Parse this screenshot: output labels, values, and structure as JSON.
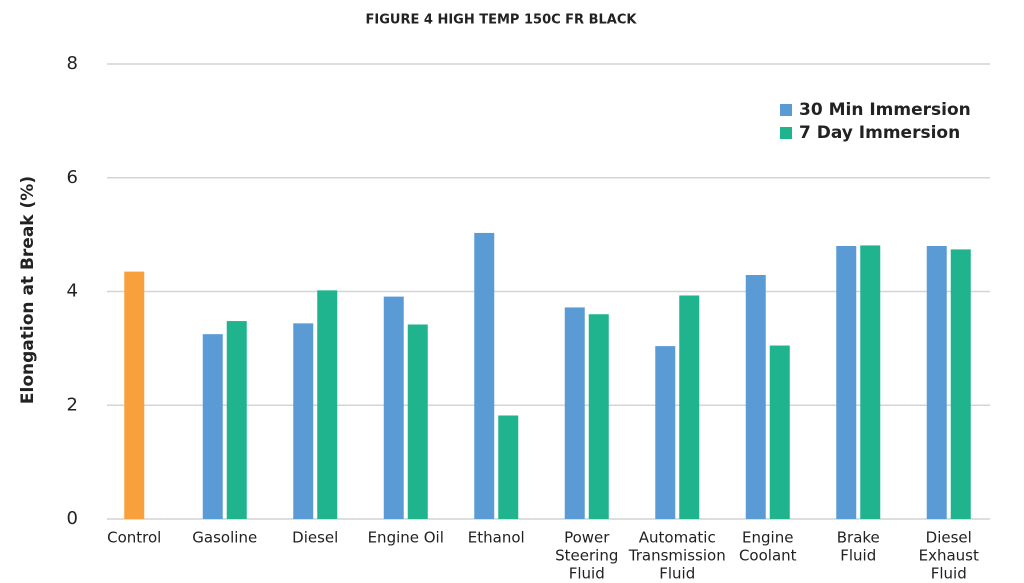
{
  "chart_data": {
    "type": "bar",
    "title": "FIGURE 4 HIGH TEMP 150C FR BLACK",
    "y_label": "Elongation at Break (%)",
    "categories": [
      [
        "Control"
      ],
      [
        "Gasoline"
      ],
      [
        "Diesel"
      ],
      [
        "Engine Oil"
      ],
      [
        "Ethanol"
      ],
      [
        "Power",
        "Steering",
        "Fluid"
      ],
      [
        "Automatic",
        "Transmission",
        "Fluid"
      ],
      [
        "Engine",
        "Coolant"
      ],
      [
        "Brake",
        "Fluid"
      ],
      [
        "Diesel",
        "Exhaust",
        "Fluid"
      ]
    ],
    "series": [
      {
        "name": "30 Min Immersion",
        "color": "#5b9bd5",
        "point_colors": [
          "#f7a03c",
          null,
          null,
          null,
          null,
          null,
          null,
          null,
          null,
          null
        ],
        "values": [
          4.35,
          3.25,
          3.44,
          3.91,
          5.03,
          3.72,
          3.04,
          4.29,
          4.8,
          4.8
        ]
      },
      {
        "name": "7 Day Immersion",
        "color": "#1fb38e",
        "values": [
          null,
          3.48,
          4.02,
          3.42,
          1.82,
          3.6,
          3.93,
          3.05,
          4.81,
          4.74
        ]
      }
    ],
    "ylim": [
      0,
      8
    ],
    "yticks": [
      0,
      2,
      4,
      6,
      8
    ],
    "grid": true,
    "legend": "top-right"
  }
}
